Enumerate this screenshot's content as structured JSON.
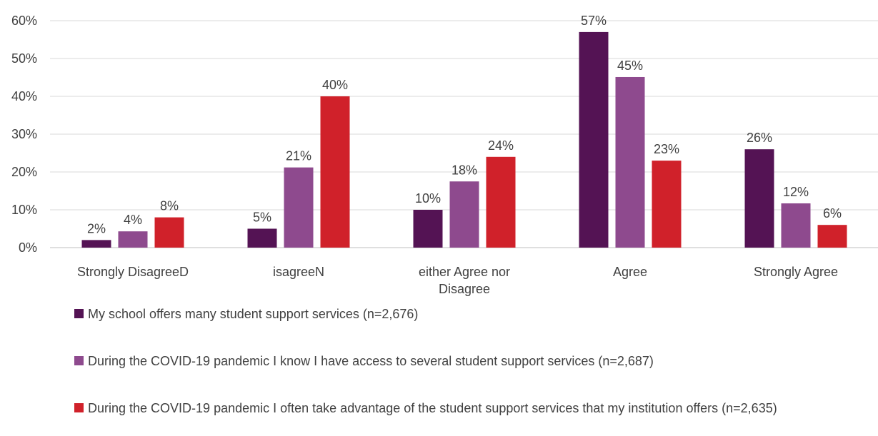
{
  "chart_data": {
    "type": "bar",
    "title": "",
    "xlabel": "",
    "ylabel": "",
    "ylim": [
      0,
      60
    ],
    "yticks": [
      "0%",
      "10%",
      "20%",
      "30%",
      "40%",
      "50%",
      "60%"
    ],
    "grid": true,
    "legend_position": "bottom",
    "categories": [
      [
        "Strongly DisagreeD"
      ],
      [
        "isagreeN"
      ],
      [
        "either Agree nor",
        "Disagree"
      ],
      [
        "Agree"
      ],
      [
        "Strongly Agree"
      ]
    ],
    "series": [
      {
        "name": "My school offers many student support services (n=2,676)",
        "color": "#541354",
        "values": [
          2,
          5,
          10,
          57,
          26
        ],
        "labels": [
          "2%",
          "5%",
          "10%",
          "57%",
          "26%"
        ]
      },
      {
        "name": "During the COVID-19 pandemic I know I have access to several student support services (n=2,687)",
        "color": "#8e4a8e",
        "values": [
          4.3,
          21.2,
          17.5,
          45.1,
          11.7
        ],
        "labels": [
          "4%",
          "21%",
          "18%",
          "45%",
          "12%"
        ]
      },
      {
        "name": "During the COVID-19 pandemic I often take advantage of the student support services that my institution offers (n=2,635)",
        "color": "#d0212a",
        "values": [
          8,
          40,
          24,
          23,
          6
        ],
        "labels": [
          "8%",
          "40%",
          "24%",
          "23%",
          "6%"
        ]
      }
    ]
  }
}
